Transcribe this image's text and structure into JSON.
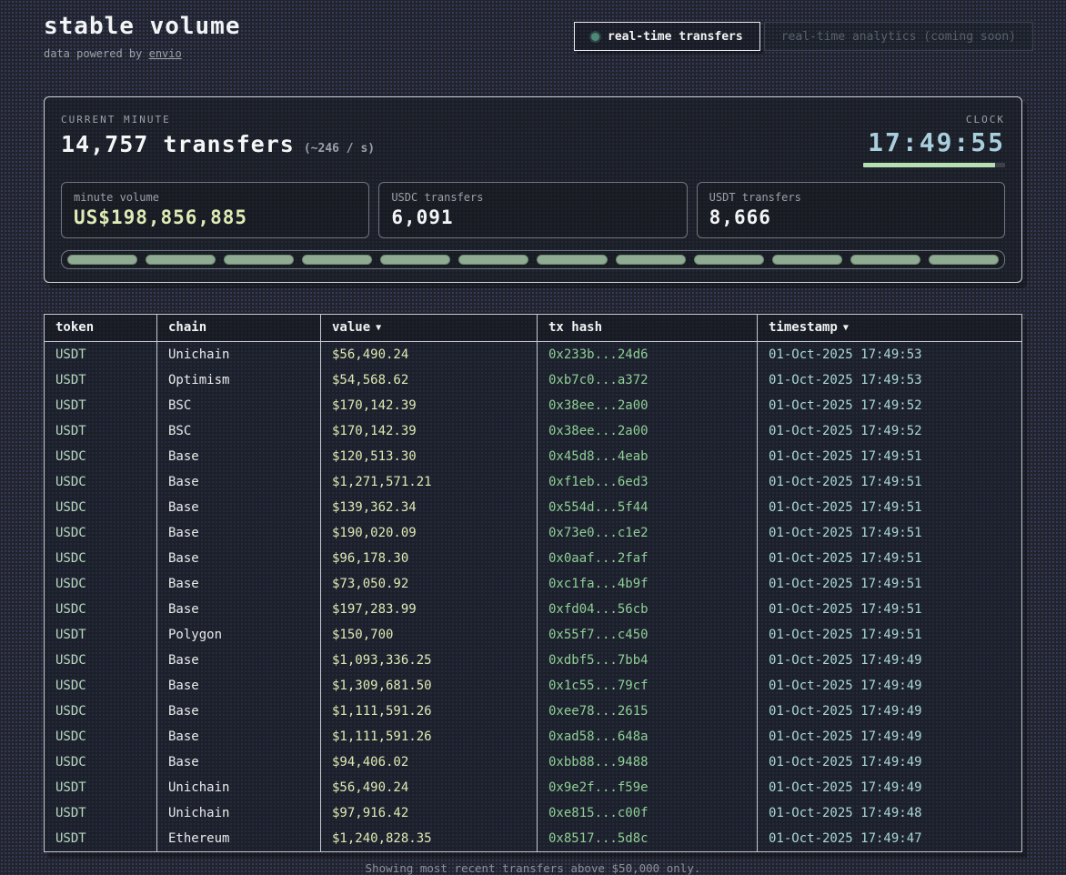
{
  "header": {
    "title": "stable volume",
    "subtitle_prefix": "data powered by ",
    "subtitle_link": "envio",
    "tabs": [
      {
        "label": "real-time transfers",
        "active": true
      },
      {
        "label": "real-time analytics (coming soon)",
        "active": false
      }
    ]
  },
  "stats": {
    "section_label": "CURRENT MINUTE",
    "transfers_count": "14,757",
    "transfers_word": "transfers",
    "rate": "(~246 / s)",
    "clock_label": "CLOCK",
    "clock_time": "17:49:55",
    "clock_progress_pct": 93,
    "boxes": [
      {
        "label": "minute volume",
        "value": "US$198,856,885",
        "accent": "yellow"
      },
      {
        "label": "USDC transfers",
        "value": "6,091",
        "accent": "white"
      },
      {
        "label": "USDT transfers",
        "value": "8,666",
        "accent": "white"
      }
    ],
    "minute_segments": 12
  },
  "table": {
    "columns": [
      {
        "label": "token",
        "arrow": ""
      },
      {
        "label": "chain",
        "arrow": ""
      },
      {
        "label": "value",
        "arrow": "▼"
      },
      {
        "label": "tx hash",
        "arrow": ""
      },
      {
        "label": "timestamp",
        "arrow": "▼"
      }
    ],
    "rows": [
      {
        "token": "USDT",
        "chain": "Unichain",
        "value": "$56,490.24",
        "tx": "0x233b...24d6",
        "timestamp": "01-Oct-2025 17:49:53"
      },
      {
        "token": "USDT",
        "chain": "Optimism",
        "value": "$54,568.62",
        "tx": "0xb7c0...a372",
        "timestamp": "01-Oct-2025 17:49:53"
      },
      {
        "token": "USDT",
        "chain": "BSC",
        "value": "$170,142.39",
        "tx": "0x38ee...2a00",
        "timestamp": "01-Oct-2025 17:49:52"
      },
      {
        "token": "USDT",
        "chain": "BSC",
        "value": "$170,142.39",
        "tx": "0x38ee...2a00",
        "timestamp": "01-Oct-2025 17:49:52"
      },
      {
        "token": "USDC",
        "chain": "Base",
        "value": "$120,513.30",
        "tx": "0x45d8...4eab",
        "timestamp": "01-Oct-2025 17:49:51"
      },
      {
        "token": "USDC",
        "chain": "Base",
        "value": "$1,271,571.21",
        "tx": "0xf1eb...6ed3",
        "timestamp": "01-Oct-2025 17:49:51"
      },
      {
        "token": "USDC",
        "chain": "Base",
        "value": "$139,362.34",
        "tx": "0x554d...5f44",
        "timestamp": "01-Oct-2025 17:49:51"
      },
      {
        "token": "USDC",
        "chain": "Base",
        "value": "$190,020.09",
        "tx": "0x73e0...c1e2",
        "timestamp": "01-Oct-2025 17:49:51"
      },
      {
        "token": "USDC",
        "chain": "Base",
        "value": "$96,178.30",
        "tx": "0x0aaf...2faf",
        "timestamp": "01-Oct-2025 17:49:51"
      },
      {
        "token": "USDC",
        "chain": "Base",
        "value": "$73,050.92",
        "tx": "0xc1fa...4b9f",
        "timestamp": "01-Oct-2025 17:49:51"
      },
      {
        "token": "USDC",
        "chain": "Base",
        "value": "$197,283.99",
        "tx": "0xfd04...56cb",
        "timestamp": "01-Oct-2025 17:49:51"
      },
      {
        "token": "USDT",
        "chain": "Polygon",
        "value": "$150,700",
        "tx": "0x55f7...c450",
        "timestamp": "01-Oct-2025 17:49:51"
      },
      {
        "token": "USDC",
        "chain": "Base",
        "value": "$1,093,336.25",
        "tx": "0xdbf5...7bb4",
        "timestamp": "01-Oct-2025 17:49:49"
      },
      {
        "token": "USDC",
        "chain": "Base",
        "value": "$1,309,681.50",
        "tx": "0x1c55...79cf",
        "timestamp": "01-Oct-2025 17:49:49"
      },
      {
        "token": "USDC",
        "chain": "Base",
        "value": "$1,111,591.26",
        "tx": "0xee78...2615",
        "timestamp": "01-Oct-2025 17:49:49"
      },
      {
        "token": "USDC",
        "chain": "Base",
        "value": "$1,111,591.26",
        "tx": "0xad58...648a",
        "timestamp": "01-Oct-2025 17:49:49"
      },
      {
        "token": "USDC",
        "chain": "Base",
        "value": "$94,406.02",
        "tx": "0xbb88...9488",
        "timestamp": "01-Oct-2025 17:49:49"
      },
      {
        "token": "USDT",
        "chain": "Unichain",
        "value": "$56,490.24",
        "tx": "0x9e2f...f59e",
        "timestamp": "01-Oct-2025 17:49:49"
      },
      {
        "token": "USDT",
        "chain": "Unichain",
        "value": "$97,916.42",
        "tx": "0xe815...c00f",
        "timestamp": "01-Oct-2025 17:49:48"
      },
      {
        "token": "USDT",
        "chain": "Ethereum",
        "value": "$1,240,828.35",
        "tx": "0x8517...5d8c",
        "timestamp": "01-Oct-2025 17:49:47"
      }
    ]
  },
  "footer": {
    "note": "Showing most recent transfers above $50,000 only."
  },
  "colors": {
    "page_bg": "#21242c",
    "accent_green_live": "#4e8878",
    "value_yellow": "#dfeab3",
    "token_green": "#b7d9bf",
    "tx_green": "#8ed096",
    "timestamp_cyan": "#a9d8d6",
    "clock_cyan": "#a9cedd",
    "progress_green": "#b4e0b2",
    "segment_sage": "#8fac92"
  }
}
